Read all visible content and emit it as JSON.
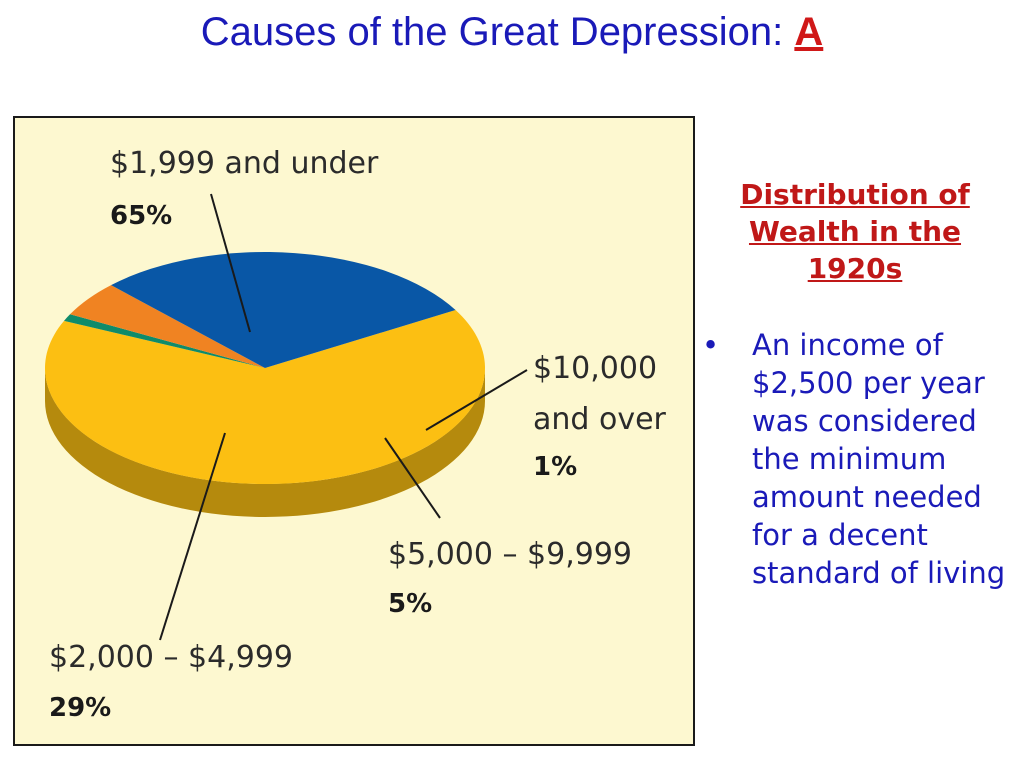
{
  "slide": {
    "title": "Causes of the Great Depression:",
    "title_letter": "A"
  },
  "side_panel": {
    "heading": "Distribution of Wealth in the 1920s",
    "bullets": [
      "An income of $2,500 per year was considered the minimum amount needed for a decent standard of living"
    ]
  },
  "colors": {
    "title": "#1a1ab8",
    "accent_red": "#c01818",
    "panel_background": "#fdf8d0",
    "slice_under_1999": "#fcbf12",
    "slice_2000_4999": "#0957a6",
    "slice_5000_9999": "#f08322",
    "slice_10000_over": "#0f8b6a"
  },
  "chart_data": {
    "type": "pie",
    "title": "",
    "style": "3d",
    "slices": [
      {
        "label": "$1,999 and under",
        "label_lines": [
          "$1,999 and under"
        ],
        "value": 65,
        "value_text": "65%"
      },
      {
        "label": "$10,000 and over",
        "label_lines": [
          "$10,000",
          "and over"
        ],
        "value": 1,
        "value_text": "1%"
      },
      {
        "label": "$5,000 – $9,999",
        "label_lines": [
          "$5,000 – $9,999"
        ],
        "value": 5,
        "value_text": "5%"
      },
      {
        "label": "$2,000 – $4,999",
        "label_lines": [
          "$2,000 – $4,999"
        ],
        "value": 29,
        "value_text": "29%"
      }
    ]
  }
}
